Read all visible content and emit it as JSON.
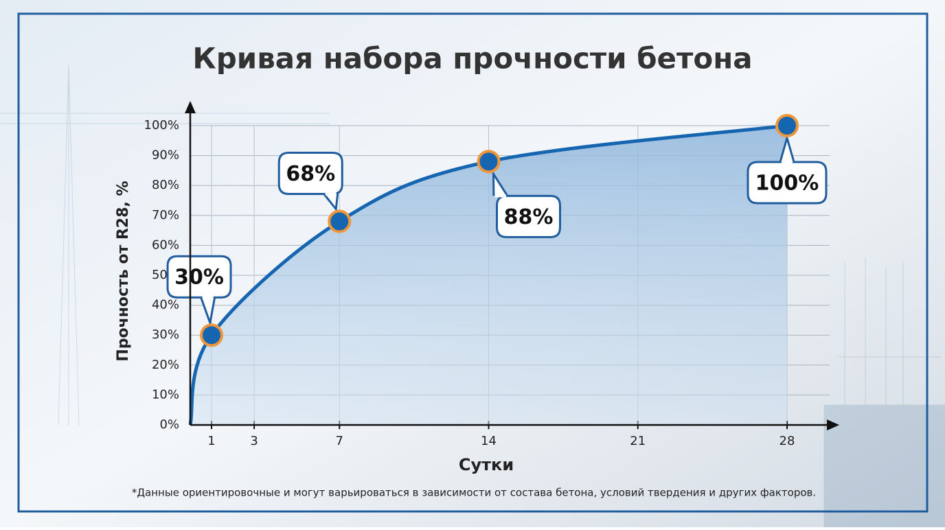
{
  "chart_data": {
    "type": "line",
    "title": "Кривая набора прочности бетона",
    "x_label": "Сутки",
    "y_label": "Прочность от R28, %",
    "footnote": "*Данные ориентировочные и могут варьироваться в зависимости от состава бетона, условий твердения и других факторов.",
    "series": [
      {
        "color": "#1565b0",
        "x": [
          0,
          1,
          7,
          14,
          28
        ],
        "values": [
          0,
          30,
          68,
          88,
          100
        ],
        "value_labels": [
          null,
          "30%",
          "68%",
          "88%",
          "100%"
        ]
      }
    ],
    "xlim": [
      0,
      30
    ],
    "ylim": [
      0,
      100
    ],
    "xticks": [
      1,
      3,
      7,
      14,
      21,
      28
    ],
    "yticks": [
      {
        "value": 0,
        "label": "0%"
      },
      {
        "value": 10,
        "label": "10%"
      },
      {
        "value": 20,
        "label": "20%"
      },
      {
        "value": 30,
        "label": "30%"
      },
      {
        "value": 40,
        "label": "40%"
      },
      {
        "value": 50,
        "label": "50%"
      },
      {
        "value": 60,
        "label": "60%"
      },
      {
        "value": 70,
        "label": "70%"
      },
      {
        "value": 80,
        "label": "80%"
      },
      {
        "value": 90,
        "label": "90%"
      },
      {
        "value": 100,
        "label": "100%"
      }
    ],
    "grid": true
  }
}
